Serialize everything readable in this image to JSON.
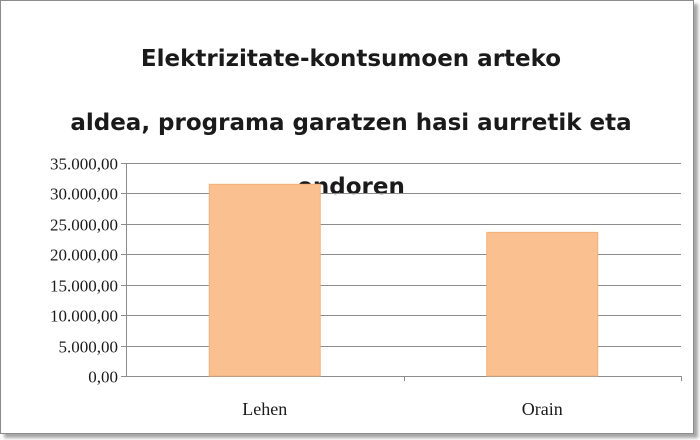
{
  "chart_data": {
    "type": "bar",
    "title": "Elektrizitate-kontsumoen arteko aldea, programa garatzen hasi aurretik eta ondoren",
    "title_lines": [
      "Elektrizitate-kontsumoen arteko",
      "aldea, programa garatzen hasi aurretik eta",
      "ondoren"
    ],
    "categories": [
      "Lehen",
      "Orain"
    ],
    "values": [
      31500,
      23600
    ],
    "ylim": [
      0,
      35000
    ],
    "yticks": [
      0,
      5000,
      10000,
      15000,
      20000,
      25000,
      30000,
      35000
    ],
    "ytick_labels": [
      "0,00",
      "5.000,00",
      "10.000,00",
      "15.000,00",
      "20.000,00",
      "25.000,00",
      "30.000,00",
      "35.000,00"
    ],
    "xlabel": "",
    "ylabel": "",
    "grid": true,
    "legend": "none",
    "colors": {
      "bar": "#fac090",
      "bar_edge": "#f2b07a",
      "grid": "#8c8c8c",
      "axis": "#8c8c8c"
    }
  }
}
